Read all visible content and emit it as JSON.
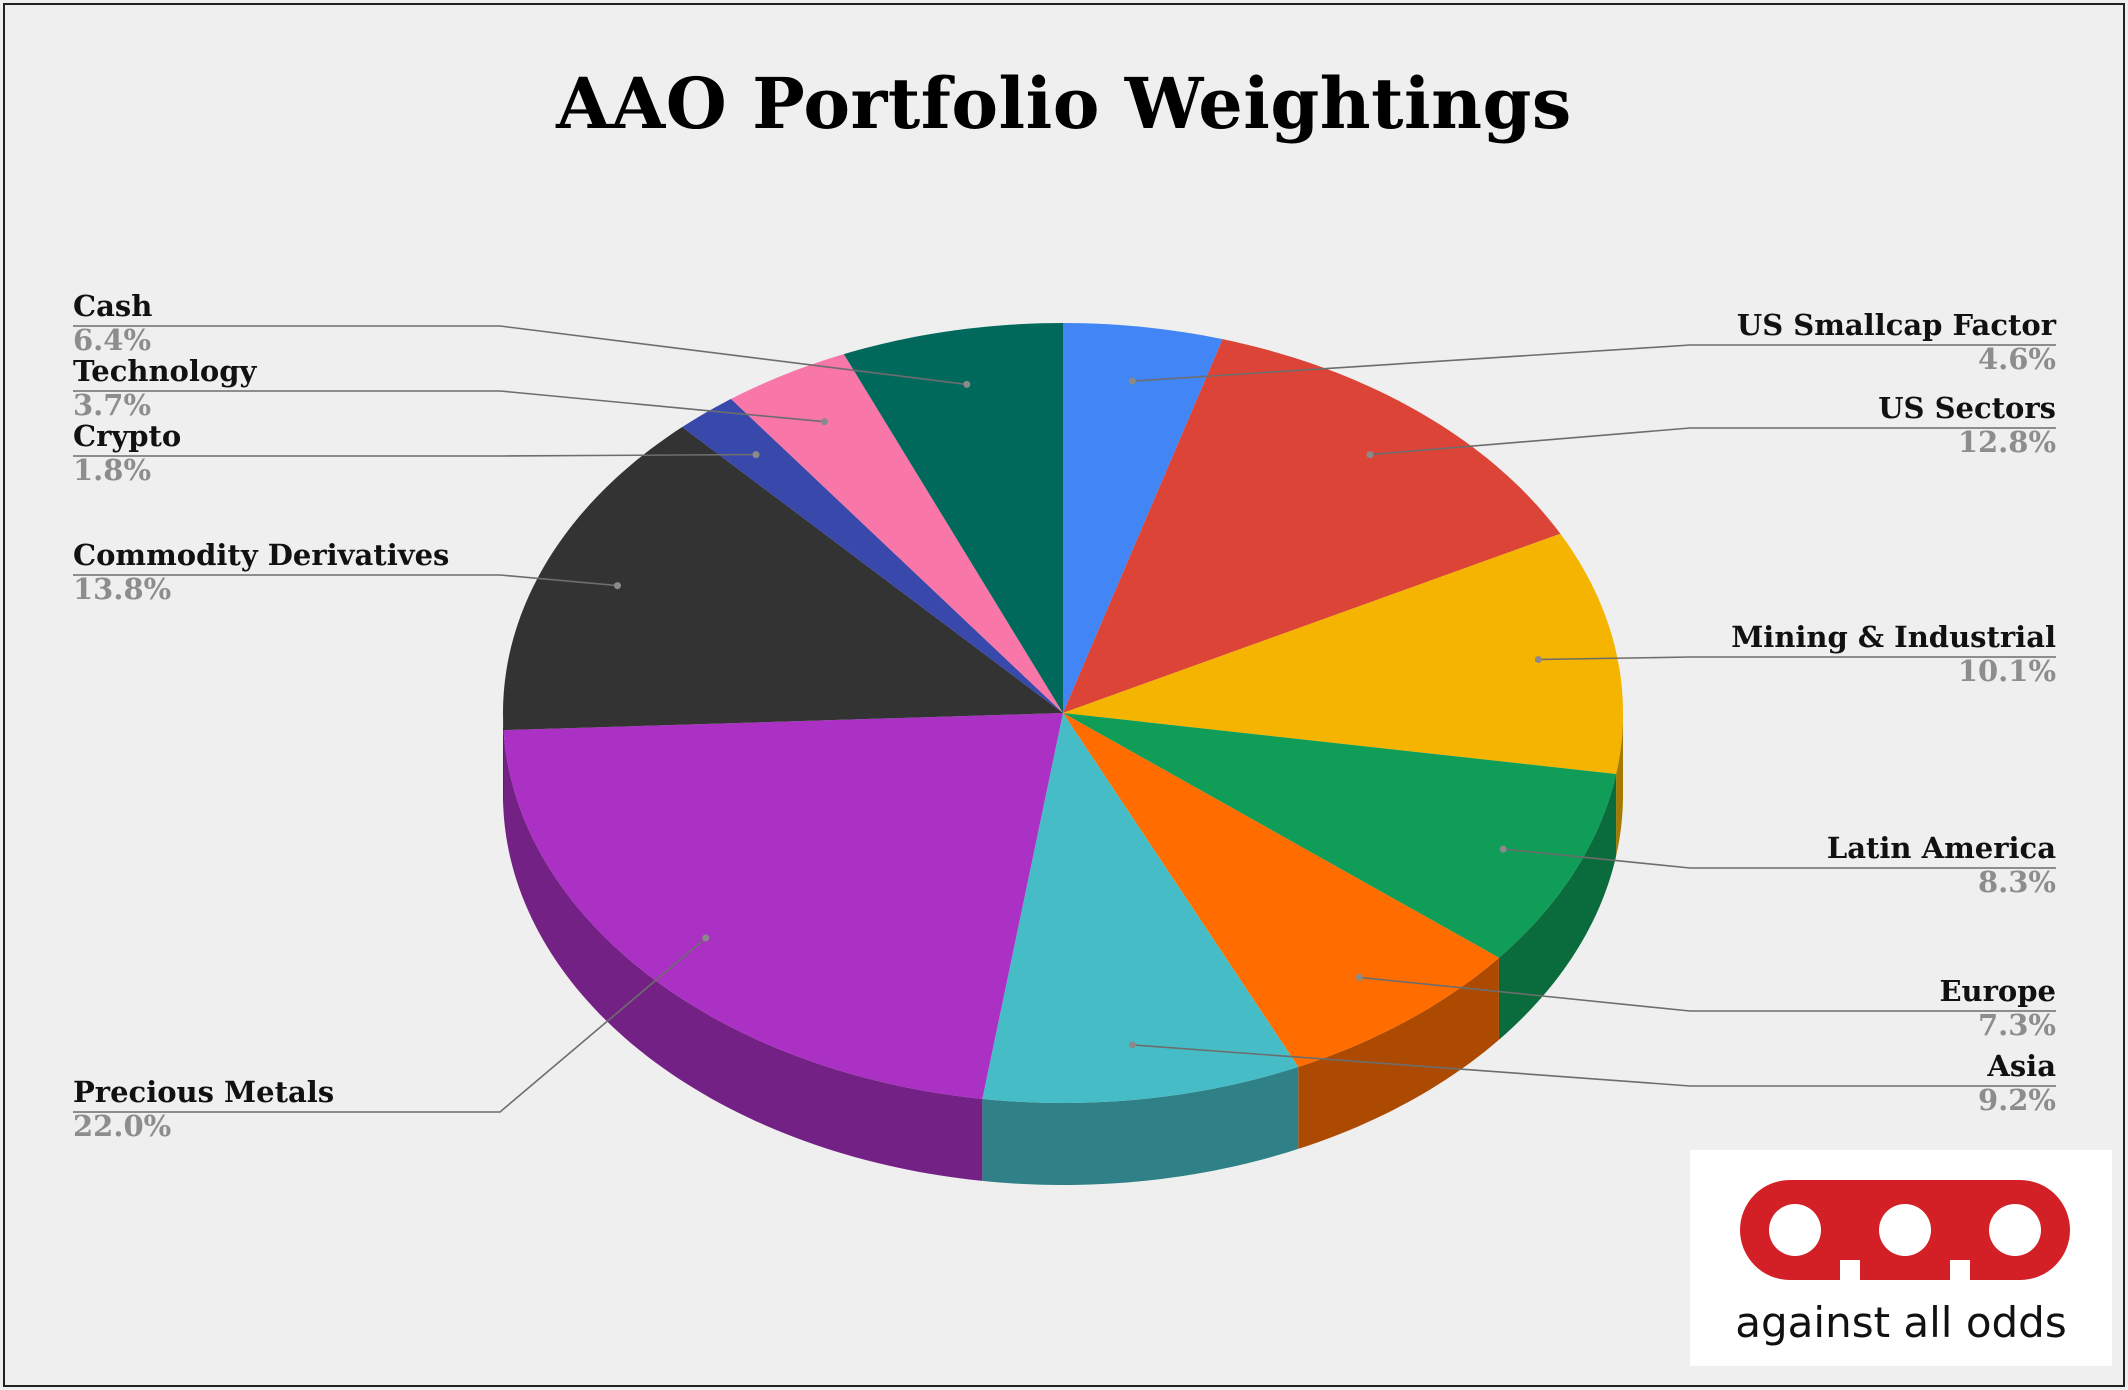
{
  "chart_data": {
    "type": "pie",
    "title": "AAO Portfolio Weightings",
    "three_d": true,
    "slices": [
      {
        "label": "US Smallcap Factor",
        "value": 4.6,
        "display": "4.6%",
        "color": "#4285f4",
        "side": "right"
      },
      {
        "label": "US Sectors",
        "value": 12.8,
        "display": "12.8%",
        "color": "#db4437",
        "side": "right"
      },
      {
        "label": "Mining & Industrial",
        "value": 10.1,
        "display": "10.1%",
        "color": "#f4b400",
        "side": "right"
      },
      {
        "label": "Latin America",
        "value": 8.3,
        "display": "8.3%",
        "color": "#0f9d58",
        "side": "right"
      },
      {
        "label": "Europe",
        "value": 7.3,
        "display": "7.3%",
        "color": "#ff6d01",
        "side": "right"
      },
      {
        "label": "Asia",
        "value": 9.2,
        "display": "9.2%",
        "color": "#46bdc6",
        "side": "right"
      },
      {
        "label": "Precious Metals",
        "value": 22.0,
        "display": "22.0%",
        "color": "#ab30c4",
        "side": "left"
      },
      {
        "label": "Commodity Derivatives",
        "value": 13.8,
        "display": "13.8%",
        "color": "#333333",
        "side": "left"
      },
      {
        "label": "Crypto",
        "value": 1.8,
        "display": "1.8%",
        "color": "#3949ab",
        "side": "left"
      },
      {
        "label": "Technology",
        "value": 3.7,
        "display": "3.7%",
        "color": "#f877a8",
        "side": "left"
      },
      {
        "label": "Cash",
        "value": 6.4,
        "display": "6.4%",
        "color": "#00695c",
        "side": "left"
      }
    ],
    "legend": "none",
    "label_style": "callout with name and percentage"
  },
  "logo": {
    "brand_text": "aao",
    "tagline": "against all odds",
    "color": "#d32027"
  }
}
